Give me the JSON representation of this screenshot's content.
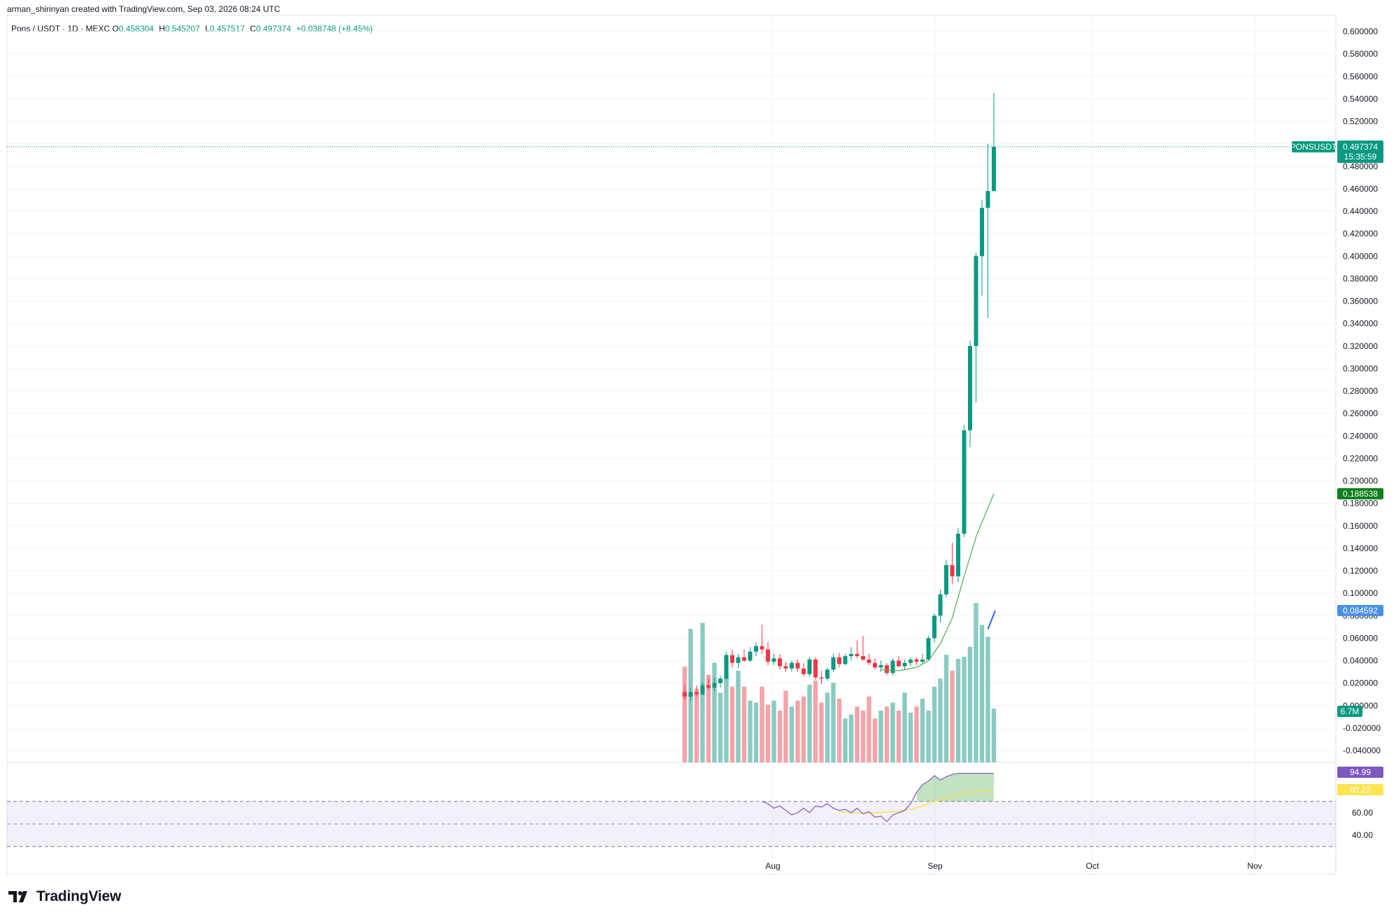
{
  "header": {
    "credit": "arman_shirinyan created with TradingView.com, Sep 03, 2026 08:24 UTC"
  },
  "legend": {
    "symbol": "Pons / USDT · 1D · MEXC",
    "o_label": "O",
    "o": "0.458304",
    "h_label": "H",
    "h": "0.545207",
    "l_label": "L",
    "l": "0.457517",
    "c_label": "C",
    "c": "0.497374",
    "change": "+0.038748 (+8.45%)"
  },
  "footer": {
    "brand": "TradingView"
  },
  "colors": {
    "up": "#089981",
    "down": "#f23645",
    "vol_up": "#89cbc2",
    "vol_down": "#f4a3a8",
    "ma": "#4caf50",
    "rsi": "#7e57c2",
    "rsi_ma": "#fbe44e",
    "grid": "#f0f3fa"
  },
  "chart_data": {
    "type": "candlestick",
    "price_axis": {
      "min": -0.04,
      "max": 0.6,
      "step": 0.02,
      "ticks": [
        "0.600000",
        "0.580000",
        "0.560000",
        "0.540000",
        "0.520000",
        "0.500000",
        "0.480000",
        "0.460000",
        "0.440000",
        "0.420000",
        "0.400000",
        "0.380000",
        "0.360000",
        "0.340000",
        "0.320000",
        "0.300000",
        "0.280000",
        "0.260000",
        "0.240000",
        "0.220000",
        "0.200000",
        "0.180000",
        "0.160000",
        "0.140000",
        "0.120000",
        "0.100000",
        "0.080000",
        "0.060000",
        "0.040000",
        "0.020000",
        "0.000000",
        "-0.020000",
        "-0.040000"
      ]
    },
    "time_axis": {
      "labels": [
        "Aug",
        "Sep",
        "Oct",
        "Nov"
      ]
    },
    "rsi_axis": {
      "ticks": [
        "60.00",
        "40.00"
      ],
      "band": [
        30,
        70
      ]
    },
    "candles": [
      {
        "o": 0.012,
        "h": 0.018,
        "l": 0.005,
        "c": 0.008
      },
      {
        "o": 0.008,
        "h": 0.016,
        "l": 0.004,
        "c": 0.012
      },
      {
        "o": 0.012,
        "h": 0.018,
        "l": 0.008,
        "c": 0.01
      },
      {
        "o": 0.01,
        "h": 0.021,
        "l": 0.009,
        "c": 0.018
      },
      {
        "o": 0.018,
        "h": 0.024,
        "l": 0.014,
        "c": 0.016
      },
      {
        "o": 0.016,
        "h": 0.025,
        "l": 0.013,
        "c": 0.02
      },
      {
        "o": 0.02,
        "h": 0.027,
        "l": 0.016,
        "c": 0.024
      },
      {
        "o": 0.024,
        "h": 0.048,
        "l": 0.023,
        "c": 0.045
      },
      {
        "o": 0.045,
        "h": 0.05,
        "l": 0.034,
        "c": 0.038
      },
      {
        "o": 0.038,
        "h": 0.046,
        "l": 0.033,
        "c": 0.043
      },
      {
        "o": 0.043,
        "h": 0.05,
        "l": 0.039,
        "c": 0.04
      },
      {
        "o": 0.04,
        "h": 0.052,
        "l": 0.039,
        "c": 0.048
      },
      {
        "o": 0.048,
        "h": 0.056,
        "l": 0.044,
        "c": 0.053
      },
      {
        "o": 0.053,
        "h": 0.072,
        "l": 0.046,
        "c": 0.05
      },
      {
        "o": 0.05,
        "h": 0.057,
        "l": 0.036,
        "c": 0.039
      },
      {
        "o": 0.039,
        "h": 0.046,
        "l": 0.036,
        "c": 0.042
      },
      {
        "o": 0.042,
        "h": 0.046,
        "l": 0.032,
        "c": 0.035
      },
      {
        "o": 0.035,
        "h": 0.039,
        "l": 0.03,
        "c": 0.033
      },
      {
        "o": 0.033,
        "h": 0.04,
        "l": 0.03,
        "c": 0.038
      },
      {
        "o": 0.038,
        "h": 0.041,
        "l": 0.03,
        "c": 0.033
      },
      {
        "o": 0.033,
        "h": 0.038,
        "l": 0.026,
        "c": 0.028
      },
      {
        "o": 0.028,
        "h": 0.043,
        "l": 0.026,
        "c": 0.041
      },
      {
        "o": 0.041,
        "h": 0.043,
        "l": 0.023,
        "c": 0.025
      },
      {
        "o": 0.025,
        "h": 0.031,
        "l": 0.019,
        "c": 0.024
      },
      {
        "o": 0.024,
        "h": 0.034,
        "l": 0.022,
        "c": 0.032
      },
      {
        "o": 0.032,
        "h": 0.046,
        "l": 0.03,
        "c": 0.043
      },
      {
        "o": 0.043,
        "h": 0.047,
        "l": 0.034,
        "c": 0.037
      },
      {
        "o": 0.037,
        "h": 0.046,
        "l": 0.036,
        "c": 0.044
      },
      {
        "o": 0.044,
        "h": 0.052,
        "l": 0.04,
        "c": 0.046
      },
      {
        "o": 0.046,
        "h": 0.058,
        "l": 0.042,
        "c": 0.044
      },
      {
        "o": 0.044,
        "h": 0.062,
        "l": 0.04,
        "c": 0.041
      },
      {
        "o": 0.041,
        "h": 0.046,
        "l": 0.036,
        "c": 0.038
      },
      {
        "o": 0.038,
        "h": 0.042,
        "l": 0.032,
        "c": 0.034
      },
      {
        "o": 0.034,
        "h": 0.04,
        "l": 0.03,
        "c": 0.036
      },
      {
        "o": 0.036,
        "h": 0.038,
        "l": 0.027,
        "c": 0.029
      },
      {
        "o": 0.029,
        "h": 0.042,
        "l": 0.027,
        "c": 0.04
      },
      {
        "o": 0.04,
        "h": 0.044,
        "l": 0.034,
        "c": 0.035
      },
      {
        "o": 0.035,
        "h": 0.041,
        "l": 0.032,
        "c": 0.038
      },
      {
        "o": 0.038,
        "h": 0.043,
        "l": 0.035,
        "c": 0.041
      },
      {
        "o": 0.041,
        "h": 0.043,
        "l": 0.036,
        "c": 0.039
      },
      {
        "o": 0.039,
        "h": 0.046,
        "l": 0.037,
        "c": 0.041
      },
      {
        "o": 0.041,
        "h": 0.062,
        "l": 0.04,
        "c": 0.06
      },
      {
        "o": 0.06,
        "h": 0.082,
        "l": 0.056,
        "c": 0.08
      },
      {
        "o": 0.08,
        "h": 0.103,
        "l": 0.074,
        "c": 0.099
      },
      {
        "o": 0.099,
        "h": 0.13,
        "l": 0.096,
        "c": 0.125
      },
      {
        "o": 0.125,
        "h": 0.145,
        "l": 0.108,
        "c": 0.115
      },
      {
        "o": 0.115,
        "h": 0.158,
        "l": 0.11,
        "c": 0.153
      },
      {
        "o": 0.153,
        "h": 0.25,
        "l": 0.15,
        "c": 0.245
      },
      {
        "o": 0.245,
        "h": 0.325,
        "l": 0.23,
        "c": 0.32
      },
      {
        "o": 0.32,
        "h": 0.403,
        "l": 0.27,
        "c": 0.4
      },
      {
        "o": 0.4,
        "h": 0.45,
        "l": 0.365,
        "c": 0.443
      },
      {
        "o": 0.443,
        "h": 0.5,
        "l": 0.345,
        "c": 0.458
      },
      {
        "o": 0.458,
        "h": 0.545207,
        "l": 0.457517,
        "c": 0.497374
      }
    ],
    "volume": [
      48,
      67,
      37,
      70,
      44,
      50,
      35,
      45,
      38,
      46,
      38,
      31,
      30,
      38,
      29,
      31,
      26,
      36,
      28,
      31,
      33,
      39,
      41,
      30,
      35,
      40,
      32,
      22,
      24,
      28,
      26,
      33,
      22,
      26,
      28,
      30,
      26,
      35,
      25,
      28,
      32,
      26,
      38,
      42,
      54,
      46,
      52,
      53,
      58,
      80,
      69,
      63,
      27
    ],
    "volume_max_value": "6.7M",
    "ma": [
      [
        33,
        0.032
      ],
      [
        36,
        0.031
      ],
      [
        39,
        0.034
      ],
      [
        41,
        0.04
      ],
      [
        43,
        0.055
      ],
      [
        45,
        0.078
      ],
      [
        47,
        0.115
      ],
      [
        49,
        0.15
      ],
      [
        51,
        0.176
      ],
      [
        52,
        0.188538
      ]
    ],
    "rsi": [
      [
        13,
        70
      ],
      [
        14,
        68
      ],
      [
        15,
        64
      ],
      [
        16,
        66
      ],
      [
        17,
        62
      ],
      [
        18,
        58
      ],
      [
        19,
        60
      ],
      [
        20,
        64
      ],
      [
        21,
        60
      ],
      [
        22,
        66
      ],
      [
        23,
        65
      ],
      [
        24,
        68
      ],
      [
        25,
        64
      ],
      [
        26,
        62
      ],
      [
        27,
        63
      ],
      [
        28,
        60
      ],
      [
        29,
        64
      ],
      [
        30,
        59
      ],
      [
        31,
        61
      ],
      [
        32,
        56
      ],
      [
        33,
        57
      ],
      [
        34,
        52
      ],
      [
        35,
        58
      ],
      [
        36,
        60
      ],
      [
        37,
        62
      ],
      [
        38,
        68
      ],
      [
        39,
        78
      ],
      [
        40,
        85
      ],
      [
        41,
        88
      ],
      [
        42,
        93
      ],
      [
        43,
        89
      ],
      [
        44,
        92
      ],
      [
        45,
        94
      ],
      [
        46,
        95
      ],
      [
        47,
        95
      ],
      [
        48,
        95
      ],
      [
        49,
        95
      ],
      [
        50,
        95
      ],
      [
        51,
        95
      ],
      [
        52,
        94.99
      ]
    ],
    "rsi_ma": [
      [
        26,
        61
      ],
      [
        28,
        60
      ],
      [
        30,
        59.5
      ],
      [
        32,
        60
      ],
      [
        34,
        60.5
      ],
      [
        36,
        61.5
      ],
      [
        38,
        63
      ],
      [
        40,
        66
      ],
      [
        42,
        70
      ],
      [
        44,
        73
      ],
      [
        46,
        76
      ],
      [
        48,
        78
      ],
      [
        50,
        79.5
      ],
      [
        52,
        80.22
      ]
    ],
    "tags": {
      "symbol": "PONSUSDT",
      "last": "0.497374",
      "countdown": "15:35:59",
      "ma": "0.188538",
      "line2": "0.084592",
      "volume": "6.7M",
      "rsi": "94.99",
      "rsi_ma": "80.22"
    }
  }
}
